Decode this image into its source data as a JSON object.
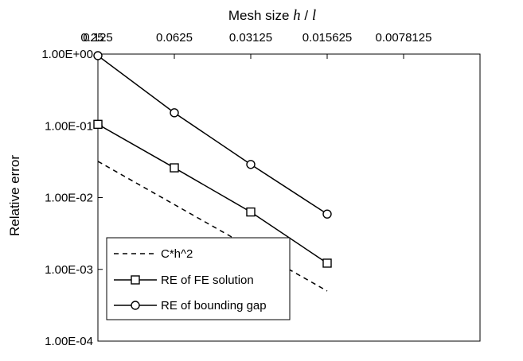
{
  "chart_data": {
    "type": "line",
    "x_axis": {
      "title_prefix": "Mesh size ",
      "title_var1": "h",
      "title_sep": " / ",
      "title_var2": "l",
      "position": "top",
      "scale": "log2-reversed",
      "ticks": [
        0.25,
        0.125,
        0.0625,
        0.03125,
        0.015625,
        0.0078125
      ],
      "tick_labels": [
        "0.25",
        "0.125",
        "0.0625",
        "0.03125",
        "0.015625",
        "0.0078125"
      ]
    },
    "y_axis": {
      "title": "Relative error",
      "scale": "log10",
      "ticks": [
        1,
        0.1,
        0.01,
        0.001,
        0.0001
      ],
      "tick_labels": [
        "1.00E+00",
        "1.00E-01",
        "1.00E-02",
        "1.00E-03",
        "1.00E-04"
      ]
    },
    "xlim": [
      0.25,
      0.0078125
    ],
    "ylim": [
      0.0001,
      1
    ],
    "grid": false,
    "legend_position": "bottom-left",
    "series": [
      {
        "name": "C*h^2",
        "style": "dashed",
        "marker": "none",
        "x": [
          0.125,
          0.0625,
          0.03125,
          0.015625
        ],
        "y": [
          0.032,
          0.008,
          0.002,
          0.0005
        ]
      },
      {
        "name": "RE of FE solution",
        "style": "solid",
        "marker": "square",
        "x": [
          0.125,
          0.0625,
          0.03125,
          0.015625
        ],
        "y": [
          0.105,
          0.026,
          0.0063,
          0.00122
        ]
      },
      {
        "name": "RE of bounding gap",
        "style": "solid",
        "marker": "circle",
        "x": [
          0.125,
          0.0625,
          0.03125,
          0.015625
        ],
        "y": [
          0.95,
          0.152,
          0.029,
          0.0059
        ]
      }
    ]
  }
}
